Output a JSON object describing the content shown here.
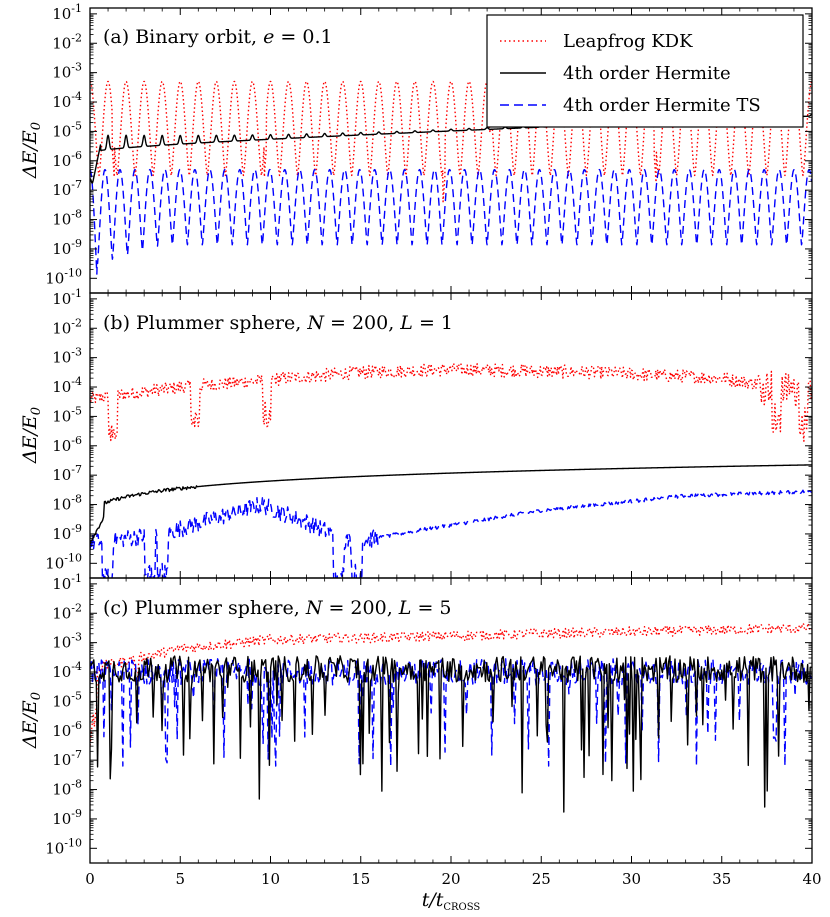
{
  "chart_data": {
    "type": "line",
    "ylabel": "ΔE / E₀",
    "xlabel": "t / t_CROSS",
    "xlabel_main": "t/t",
    "xlabel_sub": "CROSS",
    "xlim": [
      0,
      40
    ],
    "ylim_log10": [
      -10.5,
      -0.8
    ],
    "y_scale": "log",
    "x_ticks": [
      "0",
      "5",
      "10",
      "15",
      "20",
      "25",
      "30",
      "35",
      "40"
    ],
    "x_tick_values": [
      0,
      5,
      10,
      15,
      20,
      25,
      30,
      35,
      40
    ],
    "y_tick_exponents": [
      -10,
      -9,
      -8,
      -7,
      -6,
      -5,
      -4,
      -3,
      -2,
      -1
    ],
    "y_tick_base": "10",
    "legend": {
      "placement": "top-right of panel (a)",
      "entries": [
        {
          "name": "Leapfrog KDK",
          "color": "#ff0000",
          "style": "dotted"
        },
        {
          "name": "4th order Hermite",
          "color": "#000000",
          "style": "solid"
        },
        {
          "name": "4th order Hermite TS",
          "color": "#0000ff",
          "style": "dashed"
        }
      ]
    },
    "panels": [
      {
        "id": "a",
        "title": "(a) Binary orbit, e = 0.1",
        "series": {
          "leapfrog": {
            "pattern": "oscillating",
            "upper_log10": -3.3,
            "lower_log10": -6.5,
            "period": 1.0,
            "dips_at": [
              1.3,
              9.7,
              19.6,
              22.1,
              31.3
            ]
          },
          "hermite": {
            "pattern": "growing",
            "start_log10": -7.2,
            "end_log10": -4.8,
            "bumps_period": 1.0
          },
          "hermite_ts": {
            "pattern": "oscillating",
            "upper_log10": -6.3,
            "lower_log10": -9.6,
            "period": 0.83
          }
        }
      },
      {
        "id": "b",
        "title": "(b) Plummer sphere, N = 200, L = 1",
        "series": {
          "leapfrog": {
            "pattern": "noisy",
            "level_log10": [
              -4.4,
              -4.0,
              -3.5,
              -3.4,
              -3.5,
              -3.7,
              -4.2
            ],
            "level_t": [
              0,
              5,
              15,
              20,
              28,
              35,
              40
            ],
            "dips_at": [
              1.3,
              5.8,
              9.8,
              38.0,
              39.5
            ]
          },
          "hermite": {
            "pattern": "growing",
            "start_log10": -9.3,
            "end_log10": -6.65
          },
          "hermite_ts": {
            "pattern": "noisy",
            "level_log10": [
              -9.3,
              -9.0,
              -8.0,
              -8.6,
              -9.3,
              -8.9,
              -8.2,
              -7.7,
              -7.55
            ],
            "level_t": [
              0,
              4,
              9.5,
              12,
              14.5,
              18,
              25,
              33,
              40
            ],
            "dips_at": [
              1.0,
              3.3,
              4.0,
              13.8,
              14.8
            ]
          }
        }
      },
      {
        "id": "c",
        "title": "(c) Plummer sphere, N = 200, L = 5",
        "series": {
          "leapfrog": {
            "pattern": "noisy",
            "level_log10": [
              -3.9,
              -3.2,
              -2.9,
              -2.7,
              -2.5
            ],
            "level_t": [
              0,
              5,
              10,
              25,
              40
            ],
            "dips_at": [
              0.3,
              2.6
            ]
          },
          "hermite": {
            "pattern": "spiky",
            "level_log10": -3.9,
            "min_log10": -9.0
          },
          "hermite_ts": {
            "pattern": "spiky",
            "level_log10": -4.0,
            "min_log10": -7.2
          }
        }
      }
    ]
  }
}
